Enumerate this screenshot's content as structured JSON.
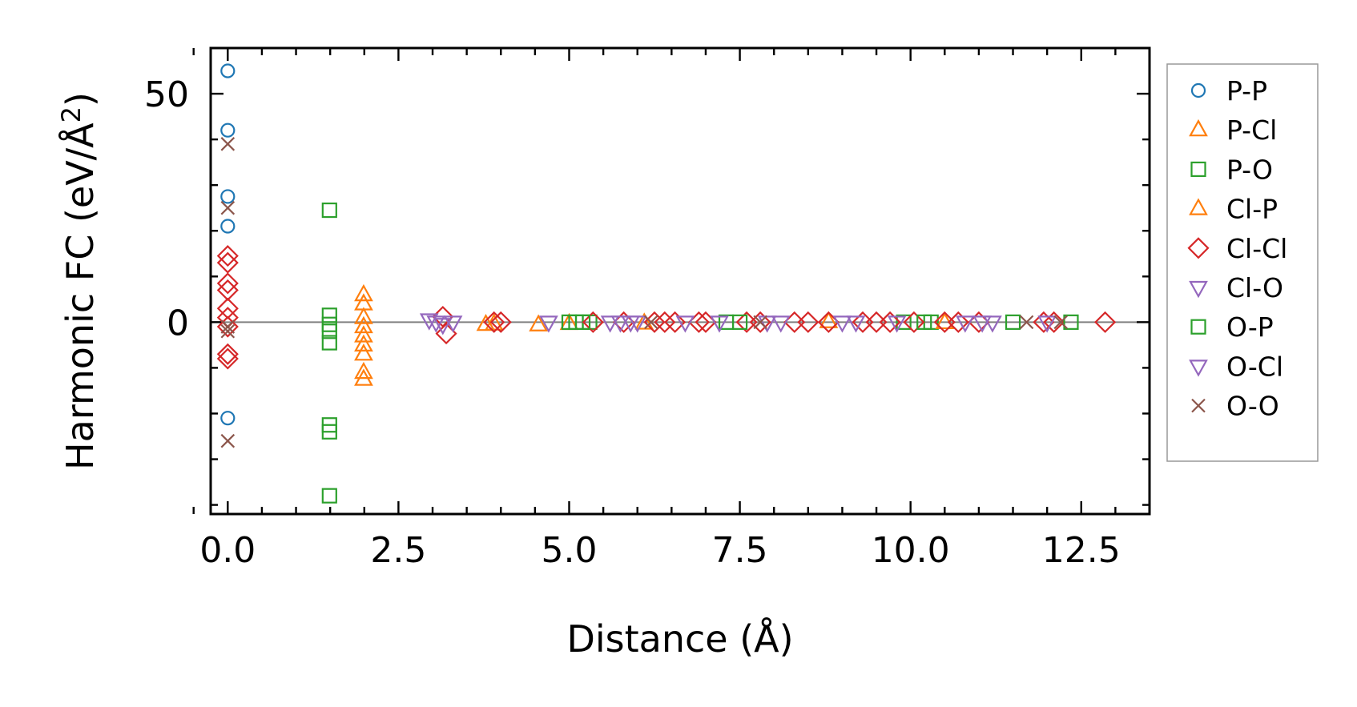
{
  "chart_data": {
    "type": "scatter",
    "title": "",
    "xlabel": "Distance (Å)",
    "ylabel_main": "Harmonic FC (eV/Å",
    "ylabel_sup": "2",
    "ylabel_close": ")",
    "xlim": [
      -0.25,
      13.5
    ],
    "ylim": [
      -42,
      60
    ],
    "xticks": [
      0.0,
      2.5,
      5.0,
      7.5,
      10.0,
      12.5
    ],
    "xtick_labels": [
      "0.0",
      "2.5",
      "5.0",
      "7.5",
      "10.0",
      "12.5"
    ],
    "yticks": [
      0,
      50
    ],
    "ytick_labels": [
      "0",
      "50"
    ],
    "zero_line": true,
    "legend_position": "right",
    "series": [
      {
        "name": "P-P",
        "marker": "circle",
        "color": "#1f77b4",
        "points": [
          [
            0,
            55
          ],
          [
            0,
            42
          ],
          [
            0,
            27.5
          ],
          [
            0,
            21
          ],
          [
            0,
            -21
          ]
        ]
      },
      {
        "name": "P-Cl",
        "marker": "triangle-up",
        "color": "#ff7f0e",
        "points": [
          [
            1.99,
            6
          ],
          [
            1.99,
            4
          ],
          [
            1.99,
            1
          ],
          [
            1.99,
            -1
          ],
          [
            1.99,
            -3
          ],
          [
            1.99,
            -5
          ],
          [
            1.99,
            -7
          ],
          [
            1.99,
            -11
          ],
          [
            1.99,
            -12.5
          ],
          [
            3.78,
            -0.5
          ],
          [
            4.55,
            -0.6
          ],
          [
            5.0,
            -0.3
          ]
        ]
      },
      {
        "name": "P-O",
        "marker": "square",
        "color": "#2ca02c",
        "points": [
          [
            1.49,
            24.5
          ],
          [
            1.49,
            1.5
          ],
          [
            1.49,
            -0.5
          ],
          [
            1.49,
            -2
          ],
          [
            1.49,
            -4.5
          ],
          [
            1.49,
            -22.5
          ],
          [
            1.49,
            -24
          ],
          [
            1.49,
            -38
          ],
          [
            5.0,
            0
          ],
          [
            5.1,
            0
          ],
          [
            5.3,
            0
          ],
          [
            7.3,
            0
          ],
          [
            9.9,
            0
          ],
          [
            10.3,
            0
          ],
          [
            11.5,
            0
          ]
        ]
      },
      {
        "name": "Cl-P",
        "marker": "triangle-up",
        "color": "#ff7f0e",
        "points": [
          [
            3.9,
            -0.4
          ],
          [
            6.1,
            -0.2
          ],
          [
            8.8,
            0.1
          ],
          [
            10.5,
            -0.1
          ]
        ]
      },
      {
        "name": "Cl-Cl",
        "marker": "diamond",
        "color": "#d62728",
        "points": [
          [
            0,
            14.5
          ],
          [
            0,
            13
          ],
          [
            0,
            8.5
          ],
          [
            0,
            7
          ],
          [
            0,
            3
          ],
          [
            0,
            1
          ],
          [
            0,
            -1
          ],
          [
            0,
            -7
          ],
          [
            0,
            -8
          ],
          [
            3.15,
            1.2
          ],
          [
            3.2,
            -2.5
          ],
          [
            3.9,
            0
          ],
          [
            4.0,
            0
          ],
          [
            5.35,
            0
          ],
          [
            5.8,
            0
          ],
          [
            6.25,
            0
          ],
          [
            6.4,
            0
          ],
          [
            6.55,
            0
          ],
          [
            6.9,
            0
          ],
          [
            7.0,
            0
          ],
          [
            7.6,
            0
          ],
          [
            7.8,
            0
          ],
          [
            8.3,
            0
          ],
          [
            8.5,
            0
          ],
          [
            8.8,
            0
          ],
          [
            9.3,
            0
          ],
          [
            9.5,
            0
          ],
          [
            9.7,
            0
          ],
          [
            10.05,
            0
          ],
          [
            10.5,
            0
          ],
          [
            10.7,
            0
          ],
          [
            11.0,
            0
          ],
          [
            11.95,
            0
          ],
          [
            12.1,
            0
          ],
          [
            12.85,
            0
          ]
        ]
      },
      {
        "name": "Cl-O",
        "marker": "triangle-down",
        "color": "#9467bd",
        "points": [
          [
            2.95,
            0.5
          ],
          [
            3.05,
            0
          ],
          [
            3.15,
            -0.5
          ],
          [
            3.3,
            0
          ],
          [
            4.7,
            0
          ],
          [
            5.6,
            0
          ],
          [
            5.9,
            0
          ],
          [
            6.7,
            0
          ],
          [
            7.2,
            0
          ],
          [
            8.1,
            0
          ],
          [
            9.0,
            0
          ],
          [
            9.8,
            0
          ],
          [
            10.8,
            0
          ],
          [
            11.2,
            0
          ]
        ]
      },
      {
        "name": "O-P",
        "marker": "square",
        "color": "#2ca02c",
        "points": [
          [
            5.2,
            0
          ],
          [
            7.5,
            0
          ],
          [
            10.2,
            0
          ],
          [
            12.35,
            0
          ]
        ]
      },
      {
        "name": "O-Cl",
        "marker": "triangle-down",
        "color": "#9467bd",
        "points": [
          [
            5.75,
            0
          ],
          [
            6.0,
            0
          ],
          [
            7.9,
            0
          ],
          [
            9.2,
            0
          ],
          [
            11.05,
            0
          ],
          [
            12.0,
            0
          ]
        ]
      },
      {
        "name": "O-O",
        "marker": "x",
        "color": "#8c564b",
        "points": [
          [
            0,
            39
          ],
          [
            0,
            25
          ],
          [
            0,
            -1
          ],
          [
            0,
            -2
          ],
          [
            0,
            -26
          ],
          [
            6.2,
            0
          ],
          [
            7.8,
            0
          ],
          [
            11.7,
            0
          ],
          [
            12.2,
            0
          ]
        ]
      }
    ]
  }
}
